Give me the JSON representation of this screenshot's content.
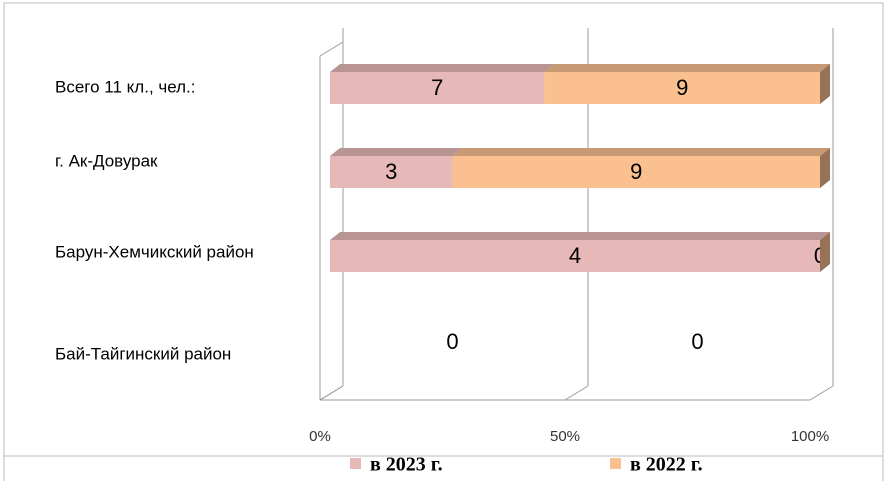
{
  "chart_data": {
    "type": "bar",
    "orientation": "horizontal",
    "stacking": "percent",
    "categories": [
      "Всего 11 кл., чел.:",
      "г. Ак-Довурак",
      "Барун-Хемчикский район",
      "Бай-Тайгинский район"
    ],
    "series": [
      {
        "name": "в 2023 г.",
        "color": "#e6b9b8",
        "values": [
          7,
          3,
          4,
          0
        ]
      },
      {
        "name": "в 2022 г.",
        "color": "#fac090",
        "values": [
          9,
          9,
          0,
          0
        ]
      }
    ],
    "xlim": [
      0,
      100
    ],
    "xticks": [
      {
        "value": 0,
        "label": "0%"
      },
      {
        "value": 50,
        "label": "50%"
      },
      {
        "value": 100,
        "label": "100%"
      }
    ],
    "grid": true,
    "data_labels": true,
    "legend": "bottom"
  }
}
